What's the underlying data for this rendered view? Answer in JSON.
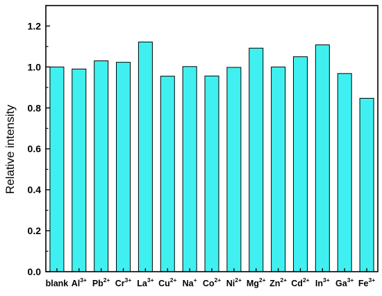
{
  "chart_data": {
    "type": "bar",
    "title": "",
    "xlabel": "",
    "ylabel": "Relative intensity",
    "categories": [
      {
        "base": "blank",
        "sup": ""
      },
      {
        "base": "Al",
        "sup": "3+"
      },
      {
        "base": "Pb",
        "sup": "2+"
      },
      {
        "base": "Cr",
        "sup": "3+"
      },
      {
        "base": "La",
        "sup": "3+"
      },
      {
        "base": "Cu",
        "sup": "2+"
      },
      {
        "base": "Na",
        "sup": "+"
      },
      {
        "base": "Co",
        "sup": "2+"
      },
      {
        "base": "Ni",
        "sup": "2+"
      },
      {
        "base": "Mg",
        "sup": "2+"
      },
      {
        "base": "Zn",
        "sup": "2+"
      },
      {
        "base": "Cd",
        "sup": "2+"
      },
      {
        "base": "In",
        "sup": "3+"
      },
      {
        "base": "Ga",
        "sup": "3+"
      },
      {
        "base": "Fe",
        "sup": "3+"
      }
    ],
    "values": [
      1.0,
      0.99,
      1.03,
      1.023,
      1.122,
      0.955,
      1.002,
      0.956,
      0.998,
      1.092,
      1.0,
      1.05,
      1.108,
      0.968,
      0.847
    ],
    "ylim": [
      0.0,
      1.3
    ],
    "yticks": [
      "0.0",
      "0.2",
      "0.4",
      "0.6",
      "0.8",
      "1.0",
      "1.2"
    ],
    "ytick_values": [
      0.0,
      0.2,
      0.4,
      0.6,
      0.8,
      1.0,
      1.2
    ],
    "grid": false,
    "legend": "none",
    "bar_color": "#40F0F0",
    "edge_color": "#000000"
  }
}
